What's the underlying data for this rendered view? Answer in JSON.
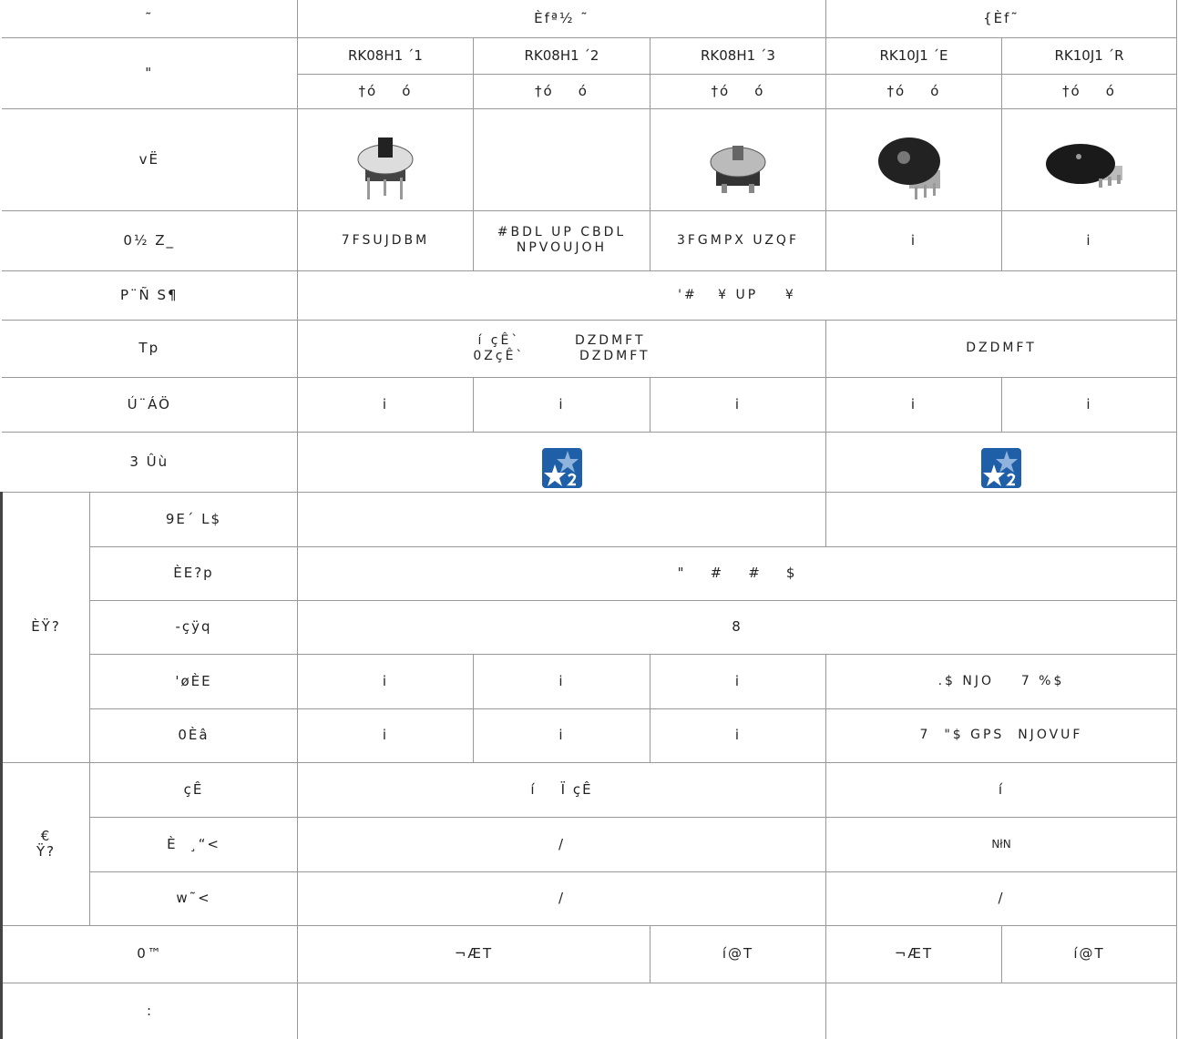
{
  "table": {
    "rows": [
      [
        "˜",
        "Èfª½  ˜",
        "{Èf˜"
      ],
      [
        "\"",
        "RK08H1 ´1",
        "RK08H1 ´2",
        "RK08H1 ´3",
        "RK10J1 ´E",
        "RK10J1 ´R"
      ],
      [
        "†ó    ó",
        "†ó    ó",
        "†ó    ó",
        "†ó    ó",
        "†ó    ó"
      ],
      [
        "vË"
      ],
      [
        "0½  Z_",
        "7FSUJDBM",
        "#BDL UP CBDL\nNPVOUJOH",
        "3FGMPX UZQF",
        "i",
        "i"
      ],
      [
        "P¨Ñ  S¶",
        "'#   ¥ UP    ¥"
      ],
      [
        "Tp",
        "í çÊ`        DZDMFT\n0ZçÊ`        DZDMFT",
        "DZDMFT"
      ],
      [
        "Ú¨ÁÖ",
        "i",
        "i",
        "i",
        "i",
        "i"
      ],
      [
        "3  Ûù"
      ],
      [
        "ÈŸ?",
        "9E´  L$"
      ],
      [
        "ÈE?p",
        "\"    #    #    $"
      ],
      [
        "-çÿq",
        "8"
      ],
      [
        "'øÈE",
        "i",
        "i",
        "i",
        ".$ NJO    7 %$"
      ],
      [
        "0Èâ",
        "i",
        "i",
        "i",
        "7  \"$ GPS  NJOVUF"
      ],
      [
        "€\nŸ?",
        "çÊ",
        "í    Ï çÊ",
        "í"
      ],
      [
        "È  ¸“<",
        "/",
        "NłN"
      ],
      [
        "w˜<",
        "/",
        "/"
      ],
      [
        "0™",
        "¬ÆT",
        "í@T",
        "¬ÆT",
        "í@T"
      ],
      [
        ":"
      ]
    ]
  }
}
